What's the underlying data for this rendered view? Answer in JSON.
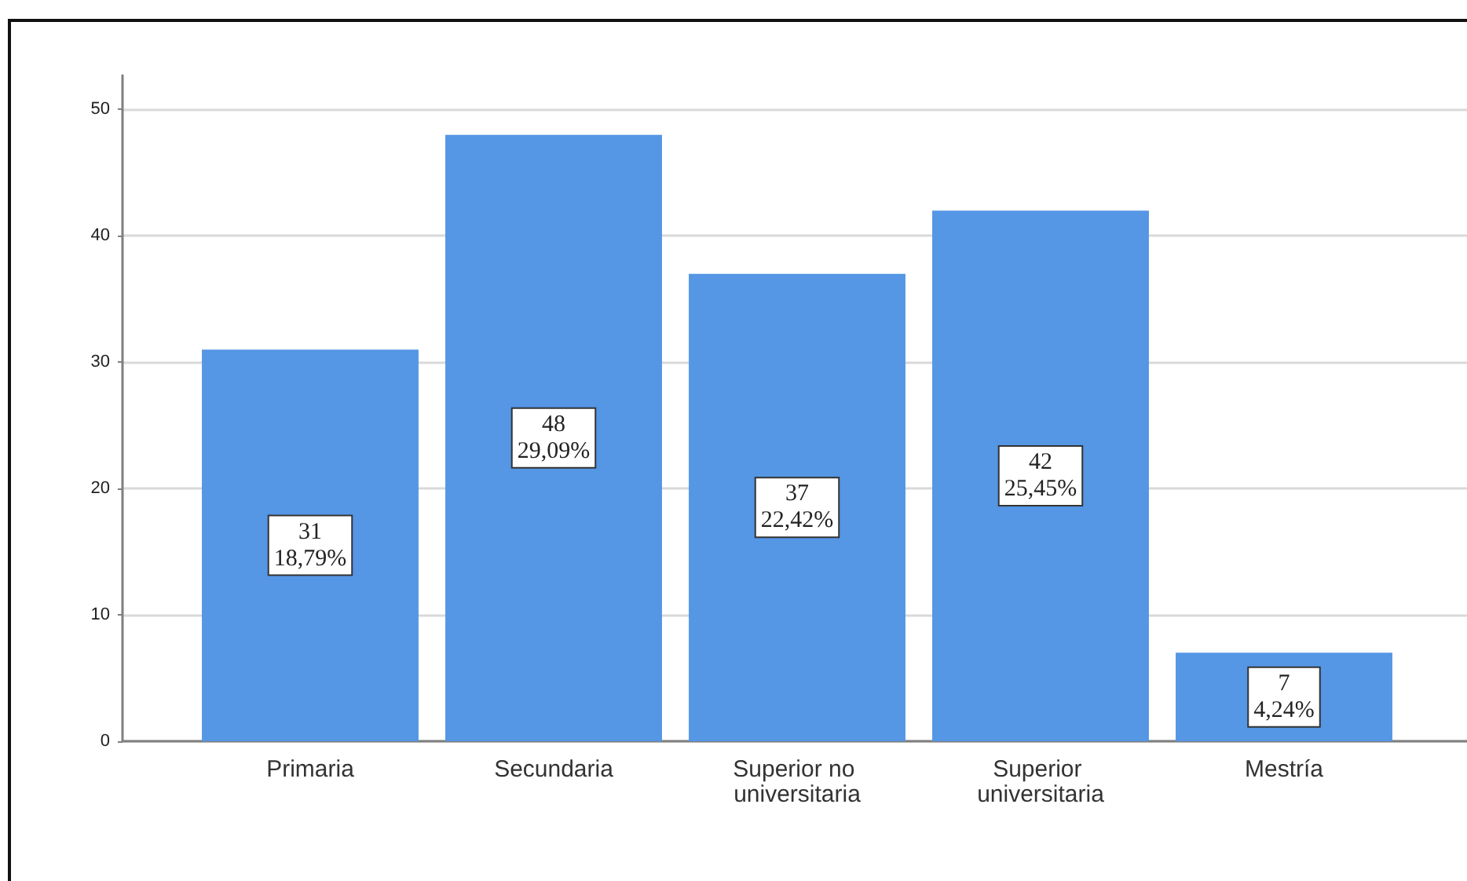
{
  "chart_data": {
    "type": "bar",
    "categories": [
      "Primaria",
      "Secundaria",
      "Superior no universitaria",
      "Superior universitaria",
      "Mestría"
    ],
    "values": [
      31,
      48,
      37,
      42,
      7
    ],
    "color": "#5596e5",
    "value_labels": [
      "31\n18,79%",
      "48\n29,09%",
      "37\n22,42%",
      "42\n25,45%",
      "7\n4,24%"
    ],
    "ylim": [
      0,
      52.7
    ],
    "yticks": [
      0,
      10,
      20,
      30,
      40,
      50
    ],
    "grid": "y"
  }
}
